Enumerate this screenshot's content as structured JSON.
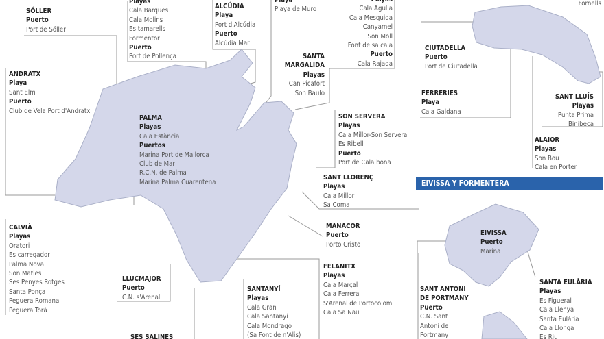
{
  "colors": {
    "land": "#d4d7ea",
    "coast": "#aab0c8",
    "leader": "#9a9a9a",
    "band": "#2a63ab"
  },
  "section_header": "EIVISSA Y FORMENTERA",
  "places": [
    {
      "id": "soller",
      "lines": [
        [
          "SÓLLER",
          1
        ],
        [
          "Puerto",
          1
        ],
        [
          "Port de Sóller",
          0
        ]
      ]
    },
    {
      "id": "pollenca",
      "lines": [
        [
          "Playas",
          1
        ],
        [
          "Cala Barques",
          0
        ],
        [
          "Cala Molins",
          0
        ],
        [
          "Es tamarells",
          0
        ],
        [
          "Formentor",
          0
        ],
        [
          "Puerto",
          1
        ],
        [
          "Port de Pollença",
          0
        ]
      ]
    },
    {
      "id": "alcudia",
      "lines": [
        [
          "ALCÚDIA",
          1
        ],
        [
          "Playa",
          1
        ],
        [
          "Port d'Alcúdia",
          0
        ],
        [
          "Puerto",
          1
        ],
        [
          "Alcúdia Mar",
          0
        ]
      ]
    },
    {
      "id": "muro",
      "lines": [
        [
          "Playa",
          1
        ],
        [
          "Playa de Muro",
          0
        ]
      ]
    },
    {
      "id": "capdepera",
      "lines": [
        [
          "Playas",
          1
        ],
        [
          "Cala Agulla",
          0
        ],
        [
          "Cala Mesquida",
          0
        ],
        [
          "Canyamel",
          0
        ],
        [
          "Son Moll",
          0
        ],
        [
          "Font de sa cala",
          0
        ],
        [
          "Puerto",
          1
        ],
        [
          "Cala Rajada",
          0
        ]
      ]
    },
    {
      "id": "santa-margalida",
      "lines": [
        [
          "SANTA",
          1
        ],
        [
          "MARGALIDA",
          1
        ],
        [
          "Playas",
          1
        ],
        [
          "Can Picafort",
          0
        ],
        [
          "Son Bauló",
          0
        ]
      ]
    },
    {
      "id": "andratx",
      "lines": [
        [
          "ANDRATX",
          1
        ],
        [
          "Playa",
          1
        ],
        [
          "Sant Elm",
          0
        ],
        [
          "Puerto",
          1
        ],
        [
          "Club de Vela Port d'Andratx",
          0
        ]
      ]
    },
    {
      "id": "palma",
      "lines": [
        [
          "PALMA",
          1
        ],
        [
          "Playas",
          1
        ],
        [
          "Cala Estància",
          0
        ],
        [
          "Puertos",
          1
        ],
        [
          "Marina Port de Mallorca",
          0
        ],
        [
          "Club de Mar",
          0
        ],
        [
          "R.C.N. de Palma",
          0
        ],
        [
          "Marina Palma Cuarentena",
          0
        ]
      ]
    },
    {
      "id": "son-servera",
      "lines": [
        [
          "SON SERVERA",
          1
        ],
        [
          "Playas",
          1
        ],
        [
          "Cala Millor-Son Servera",
          0
        ],
        [
          "Es Ribell",
          0
        ],
        [
          "Puerto",
          1
        ],
        [
          "Port de Cala bona",
          0
        ]
      ]
    },
    {
      "id": "sant-llorenc",
      "lines": [
        [
          "SANT LLORENÇ",
          1
        ],
        [
          "Playas",
          1
        ],
        [
          "Cala Millor",
          0
        ],
        [
          "Sa Coma",
          0
        ]
      ]
    },
    {
      "id": "manacor",
      "lines": [
        [
          "MANACOR",
          1
        ],
        [
          "Puerto",
          1
        ],
        [
          "Porto Cristo",
          0
        ]
      ]
    },
    {
      "id": "calvia",
      "lines": [
        [
          "CALVIÀ",
          1
        ],
        [
          "Playas",
          1
        ],
        [
          "Oratori",
          0
        ],
        [
          "Es carregador",
          0
        ],
        [
          "Palma Nova",
          0
        ],
        [
          "Son Maties",
          0
        ],
        [
          "Ses Penyes Rotges",
          0
        ],
        [
          "Santa Ponça",
          0
        ],
        [
          "Peguera Romana",
          0
        ],
        [
          "Peguera Torà",
          0
        ]
      ]
    },
    {
      "id": "llucmajor",
      "lines": [
        [
          "LLUCMAJOR",
          1
        ],
        [
          "Puerto",
          1
        ],
        [
          "C.N. s'Arenal",
          0
        ]
      ]
    },
    {
      "id": "ses-salines",
      "lines": [
        [
          "SES SALINES",
          1
        ]
      ]
    },
    {
      "id": "santanyi",
      "lines": [
        [
          "SANTANYÍ",
          1
        ],
        [
          "Playas",
          1
        ],
        [
          "Cala Gran",
          0
        ],
        [
          "Cala Santanyí",
          0
        ],
        [
          "Cala Mondragó",
          0
        ],
        [
          "(Sa Font de n'Alis)",
          0
        ]
      ]
    },
    {
      "id": "felanitx",
      "lines": [
        [
          "FELANITX",
          1
        ],
        [
          "Playas",
          1
        ],
        [
          "Cala Marçal",
          0
        ],
        [
          "Cala Ferrera",
          0
        ],
        [
          "S'Arenal de Portocolom",
          0
        ],
        [
          "Cala Sa Nau",
          0
        ]
      ]
    },
    {
      "id": "fornells",
      "lines": [
        [
          "Fornells",
          0
        ]
      ]
    },
    {
      "id": "ciutadella",
      "lines": [
        [
          "CIUTADELLA",
          1
        ],
        [
          "Puerto",
          1
        ],
        [
          "Port de Ciutadella",
          0
        ]
      ]
    },
    {
      "id": "ferreries",
      "lines": [
        [
          "FERRERIES",
          1
        ],
        [
          "Playa",
          1
        ],
        [
          "Cala Galdana",
          0
        ]
      ]
    },
    {
      "id": "sant-lluis",
      "lines": [
        [
          "SANT LLUÍS",
          1
        ],
        [
          "Playas",
          1
        ],
        [
          "Punta Prima",
          0
        ],
        [
          "Binibeca",
          0
        ]
      ]
    },
    {
      "id": "alaior",
      "lines": [
        [
          "ALAIOR",
          1
        ],
        [
          "Playas",
          1
        ],
        [
          "Son Bou",
          0
        ],
        [
          "Cala en Porter",
          0
        ]
      ]
    },
    {
      "id": "eivissa",
      "lines": [
        [
          "EIVISSA",
          1
        ],
        [
          "Puerto",
          1
        ],
        [
          "Marina",
          0
        ]
      ]
    },
    {
      "id": "sant-antoni",
      "lines": [
        [
          "SANT ANTONI",
          1
        ],
        [
          "DE PORTMANY",
          1
        ],
        [
          "Puerto",
          1
        ],
        [
          "C.N. Sant",
          0
        ],
        [
          "Antoni de",
          0
        ],
        [
          "Portmany",
          0
        ]
      ]
    },
    {
      "id": "santa-eularia",
      "lines": [
        [
          "SANTA EULÀRIA",
          1
        ],
        [
          "Playas",
          1
        ],
        [
          "Es Figueral",
          0
        ],
        [
          "Cala Llenya",
          0
        ],
        [
          "Santa Eulària",
          0
        ],
        [
          "Cala Llonga",
          0
        ],
        [
          "Es Riu",
          0
        ]
      ]
    }
  ]
}
